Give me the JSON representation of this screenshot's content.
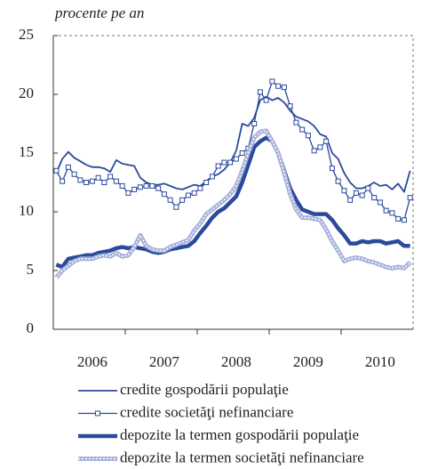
{
  "chart_data": {
    "type": "line",
    "subtitle": "procente pe an",
    "categories": [
      null,
      null,
      null,
      null,
      null,
      null,
      "2006",
      null,
      null,
      null,
      null,
      null,
      null,
      null,
      null,
      null,
      null,
      null,
      "2007",
      null,
      null,
      null,
      null,
      null,
      null,
      null,
      null,
      null,
      null,
      null,
      "2008",
      null,
      null,
      null,
      null,
      null,
      null,
      null,
      null,
      null,
      null,
      null,
      "2009",
      null,
      null,
      null,
      null,
      null,
      null,
      null,
      null,
      null,
      null,
      null,
      "2010",
      null,
      null,
      null,
      null,
      null
    ],
    "ylim": [
      0,
      25
    ],
    "yticks": [
      0,
      5,
      10,
      15,
      20,
      25
    ],
    "series": [
      {
        "name": "credite gospodării populaţie",
        "color": "#2a4a9c",
        "style": "thin",
        "values": [
          13.3,
          14.5,
          15.1,
          14.6,
          14.3,
          14,
          13.8,
          13.8,
          13.7,
          13.4,
          14.4,
          14.1,
          14,
          13.9,
          12.9,
          12.5,
          12.3,
          12.3,
          12.4,
          12.2,
          12,
          11.9,
          12.1,
          12.3,
          12.2,
          12.6,
          13,
          13.2,
          13.6,
          14.2,
          15.2,
          17.5,
          17.3,
          18,
          19.5,
          19.8,
          19.5,
          19.7,
          19.3,
          18.6,
          18.1,
          17.9,
          17.7,
          17.3,
          16.6,
          16.4,
          15,
          14.5,
          13.3,
          12.5,
          12,
          12,
          12.2,
          12.5,
          12.2,
          12.3,
          11.9,
          12.4,
          11.7,
          13.5
        ]
      },
      {
        "name": "credite societăţi nefinanciare",
        "color": "#2a4a9c",
        "style": "square",
        "values": [
          13.5,
          12.6,
          13.8,
          13.2,
          12.7,
          12.5,
          12.6,
          12.9,
          12.5,
          13,
          12.6,
          12.2,
          11.6,
          11.9,
          12.1,
          12.2,
          12.2,
          12,
          11.5,
          11,
          10.4,
          11,
          11.4,
          11.6,
          12,
          12.5,
          13,
          13.9,
          14.2,
          14.2,
          14.5,
          15,
          15.4,
          17.5,
          20.2,
          19.5,
          21.1,
          20.7,
          20.6,
          19,
          17.6,
          17,
          16.5,
          15.2,
          15.5,
          16,
          13.7,
          12.6,
          11.8,
          11,
          11.6,
          11.4,
          12,
          11.2,
          10.8,
          10.1,
          9.9,
          9.4,
          9.3,
          11.2
        ]
      },
      {
        "name": "depozite la termen gospodării populaţie",
        "color": "#2a4a9c",
        "style": "thick",
        "values": [
          5.5,
          5.3,
          6,
          6.1,
          6.2,
          6.3,
          6.3,
          6.5,
          6.6,
          6.7,
          6.9,
          7,
          6.9,
          7,
          6.9,
          6.8,
          6.6,
          6.5,
          6.6,
          6.8,
          6.9,
          7,
          7.1,
          7.5,
          8.2,
          8.8,
          9.5,
          10,
          10.3,
          10.8,
          11.3,
          12.5,
          14,
          15.5,
          16,
          16.3,
          16,
          15,
          13.5,
          12,
          11,
          10.2,
          10,
          9.8,
          9.8,
          9.8,
          9.3,
          8.6,
          8,
          7.3,
          7.3,
          7.5,
          7.4,
          7.5,
          7.5,
          7.3,
          7.4,
          7.5,
          7.1,
          7.1
        ]
      },
      {
        "name": "depozite la termen societăţi nefinanciare",
        "color": "#a7b1da",
        "style": "hatched",
        "values": [
          4.4,
          5,
          5.4,
          5.8,
          6,
          6,
          6,
          6.2,
          6.3,
          6.2,
          6.5,
          6.2,
          6.3,
          7,
          8,
          7.1,
          6.8,
          6.7,
          6.7,
          7,
          7.2,
          7.4,
          7.6,
          8.4,
          9,
          9.8,
          10.2,
          10.6,
          11,
          11.5,
          12.2,
          13.5,
          15,
          16.3,
          16.8,
          16.9,
          16,
          15,
          13.3,
          11.5,
          10.2,
          9.5,
          9.5,
          9.4,
          9.3,
          8.5,
          7.5,
          6.7,
          5.8,
          6,
          6.1,
          6,
          5.8,
          5.7,
          5.5,
          5.3,
          5.2,
          5.3,
          5.2,
          5.7
        ]
      }
    ]
  }
}
